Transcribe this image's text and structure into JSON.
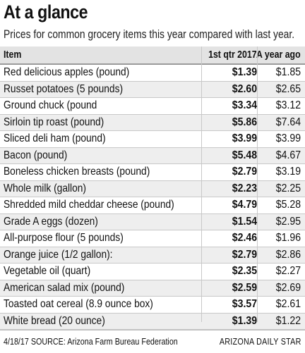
{
  "title": "At a glance",
  "subtitle": "Prices for common grocery items this year compared with last year.",
  "table": {
    "columns": [
      "Item",
      "1st qtr 2017",
      "A year ago"
    ],
    "rows": [
      {
        "item": "Red delicious apples (pound)",
        "current": "$1.39",
        "previous": "$1.85"
      },
      {
        "item": "Russet potatoes (5 pounds)",
        "current": "$2.60",
        "previous": "$2.65"
      },
      {
        "item": "Ground chuck (pound",
        "current": "$3.34",
        "previous": "$3.12"
      },
      {
        "item": "Sirloin tip roast (pound)",
        "current": "$5.86",
        "previous": "$7.64"
      },
      {
        "item": "Sliced deli ham (pound)",
        "current": "$3.99",
        "previous": "$3.99"
      },
      {
        "item": "Bacon (pound)",
        "current": "$5.48",
        "previous": "$4.67"
      },
      {
        "item": "Boneless chicken breasts (pound)",
        "current": "$2.79",
        "previous": "$3.19"
      },
      {
        "item": "Whole milk (gallon)",
        "current": "$2.23",
        "previous": "$2.25"
      },
      {
        "item": "Shredded mild cheddar cheese (pound)",
        "current": "$4.79",
        "previous": "$5.28"
      },
      {
        "item": "Grade A eggs (dozen)",
        "current": "$1.54",
        "previous": "$2.95"
      },
      {
        "item": "All-purpose flour (5 pounds)",
        "current": "$2.46",
        "previous": "$1.96"
      },
      {
        "item": "Orange juice (1/2 gallon):",
        "current": "$2.79",
        "previous": "$2.86"
      },
      {
        "item": "Vegetable oil (quart)",
        "current": "$2.35",
        "previous": "$2.27"
      },
      {
        "item": "American salad mix (pound)",
        "current": "$2.59",
        "previous": "$2.69"
      },
      {
        "item": "Toasted oat cereal (8.9 ounce box)",
        "current": "$3.57",
        "previous": "$2.61"
      },
      {
        "item": "White bread (20 ounce)",
        "current": "$1.39",
        "previous": "$1.22"
      }
    ]
  },
  "footer": {
    "source": "4/18/17  SOURCE: Arizona Farm Bureau Federation",
    "credit": "ARIZONA DAILY STAR"
  }
}
